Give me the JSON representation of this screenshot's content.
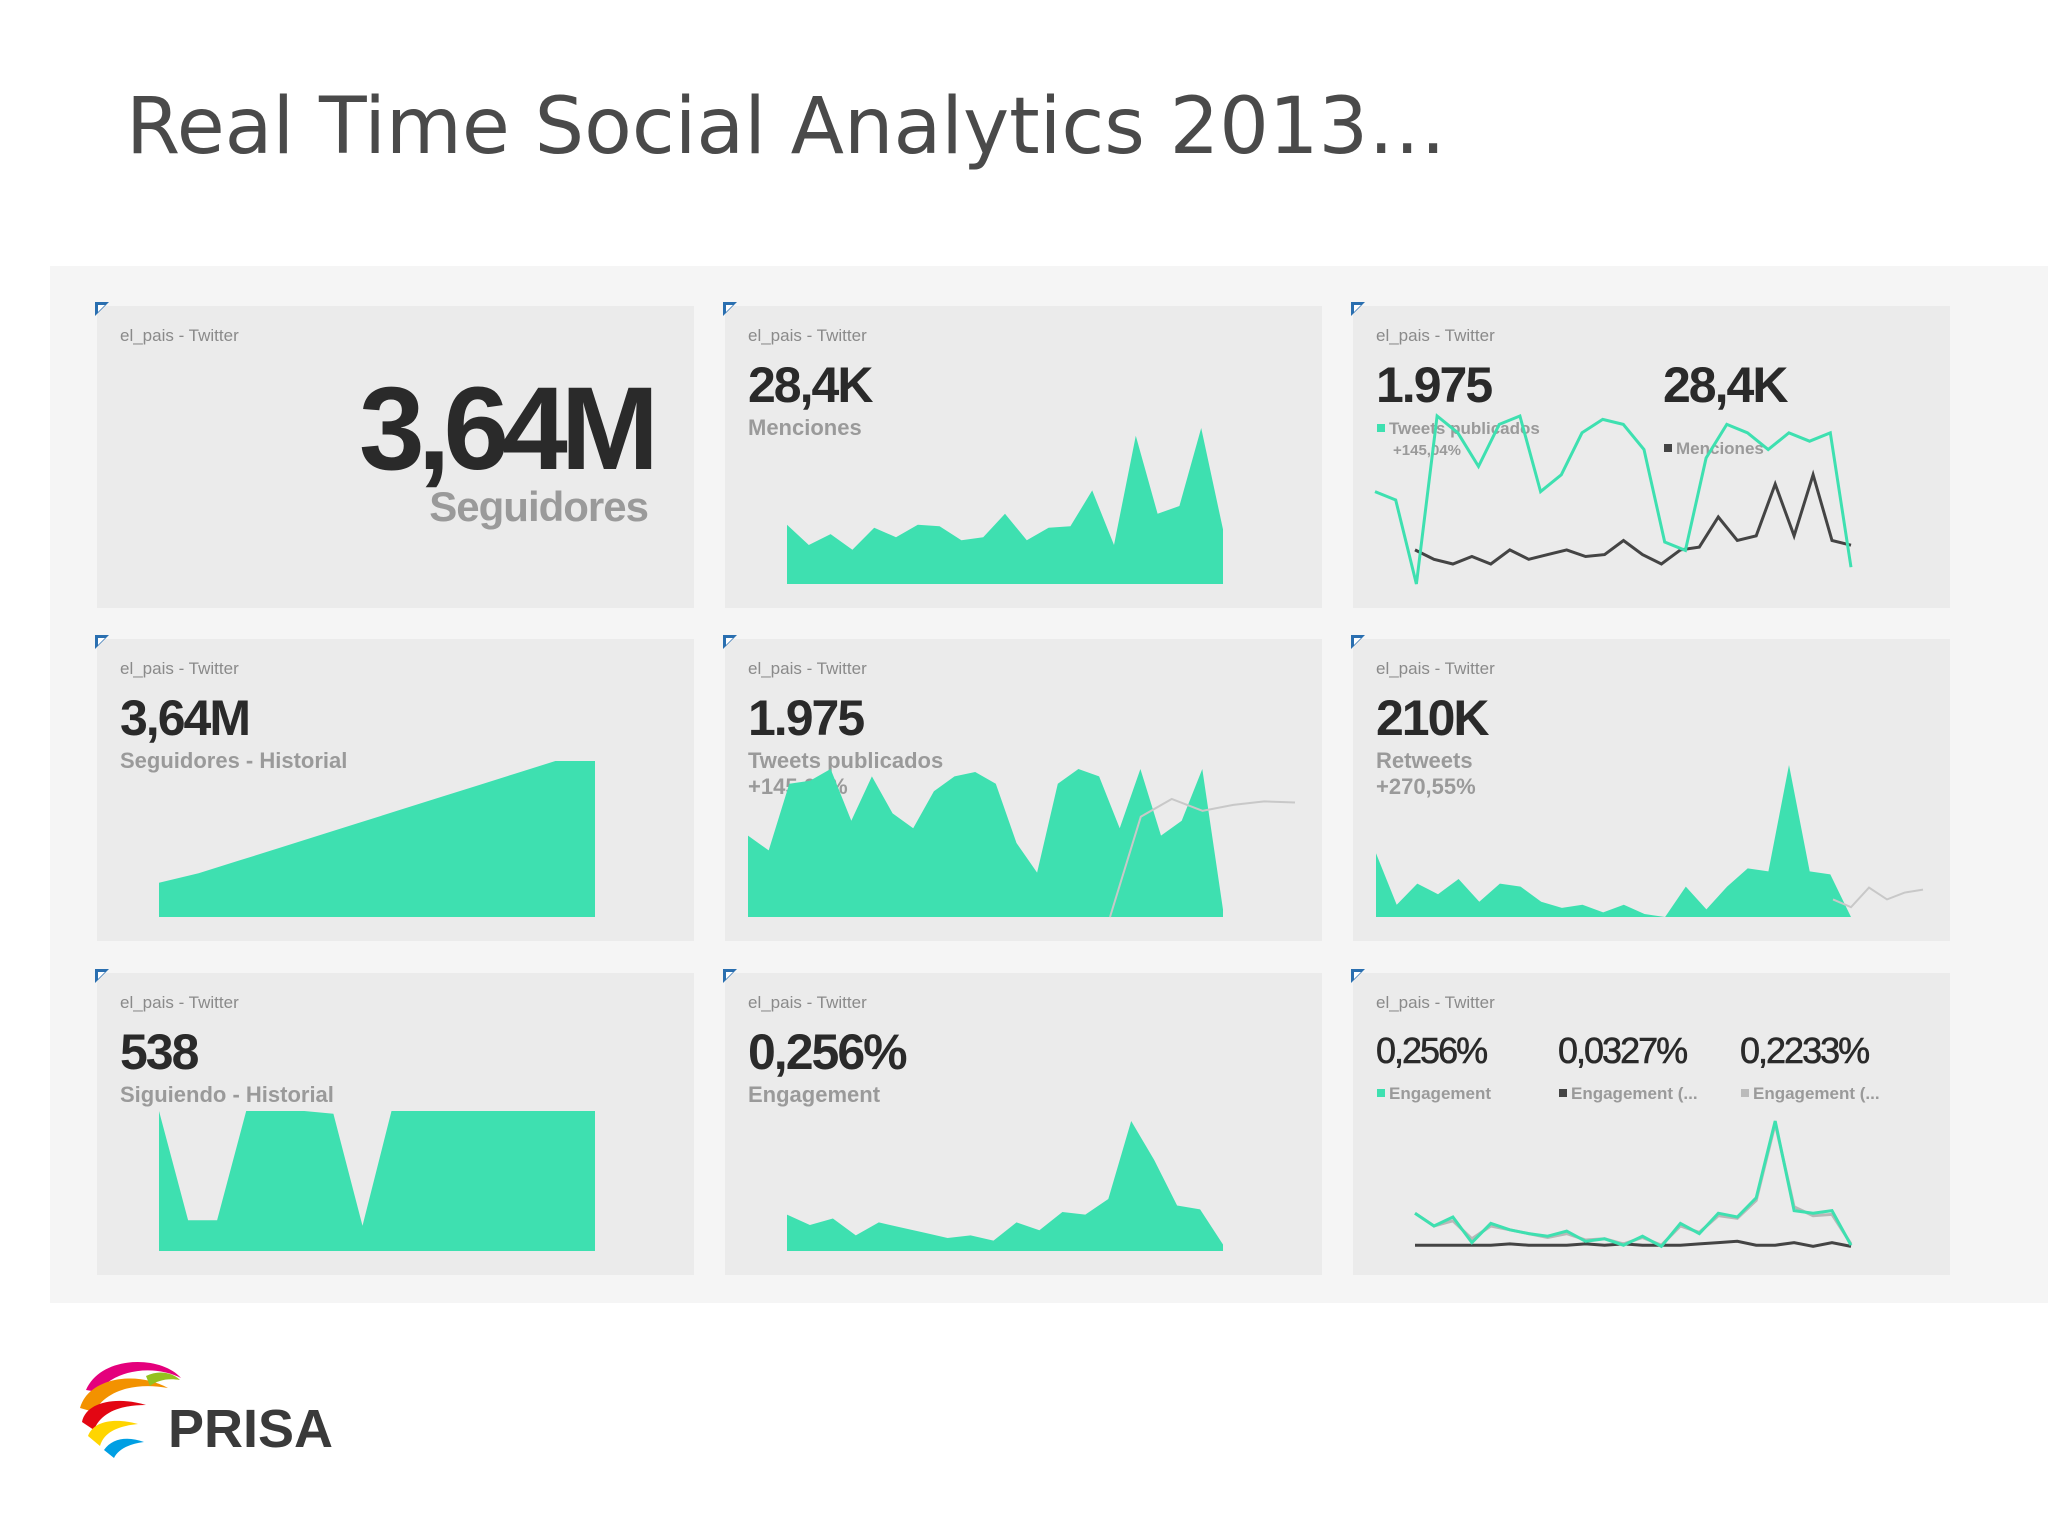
{
  "title": "Real Time Social Analytics 2013…",
  "colors": {
    "accent": "#3ee0b0",
    "dark_series": "#444444",
    "grey_series": "#bbbbbb",
    "tile_bg": "#ebebeb",
    "dashboard_bg": "#f5f5f5"
  },
  "tiles": [
    {
      "source": "el_pais - Twitter",
      "value": "3,64M",
      "label": "Seguidores"
    },
    {
      "source": "el_pais - Twitter",
      "value": "28,4K",
      "label": "Menciones",
      "series": [
        0.38,
        0.25,
        0.32,
        0.22,
        0.36,
        0.3,
        0.38,
        0.37,
        0.28,
        0.3,
        0.45,
        0.28,
        0.36,
        0.37,
        0.6,
        0.25,
        0.95,
        0.45,
        0.5,
        1.0,
        0.35
      ]
    },
    {
      "source": "el_pais - Twitter",
      "values": [
        "1.975",
        "28,4K"
      ],
      "legend": [
        "Tweets publicados",
        "Menciones"
      ],
      "legend_sub": "+145,04%",
      "series_a": [
        0.55,
        0.5,
        0.0,
        1.0,
        0.9,
        0.7,
        0.95,
        1.0,
        0.55,
        0.65,
        0.9,
        0.98,
        0.95,
        0.8,
        0.25,
        0.2,
        0.75,
        0.95,
        0.9,
        0.8,
        0.9,
        0.85,
        0.9,
        0.1
      ],
      "series_b": [
        0.15,
        0.05,
        0.0,
        0.08,
        0.0,
        0.15,
        0.05,
        0.1,
        0.15,
        0.08,
        0.1,
        0.25,
        0.1,
        0.0,
        0.15,
        0.18,
        0.5,
        0.25,
        0.3,
        0.85,
        0.3,
        0.95,
        0.25,
        0.2
      ]
    },
    {
      "source": "el_pais - Twitter",
      "value": "3,64M",
      "label": "Seguidores - Historial",
      "series": [
        0.22,
        0.28,
        0.36,
        0.44,
        0.52,
        0.6,
        0.68,
        0.76,
        0.84,
        0.92,
        1.0,
        1.0
      ]
    },
    {
      "source": "el_pais - Twitter",
      "value": "1.975",
      "label": "Tweets publicados",
      "sub": "+145,04%",
      "series": [
        0.55,
        0.45,
        0.9,
        0.92,
        1.0,
        0.65,
        0.95,
        0.7,
        0.6,
        0.85,
        0.95,
        0.98,
        0.9,
        0.5,
        0.3,
        0.9,
        1.0,
        0.95,
        0.6,
        1.0,
        0.55,
        0.65,
        1.0,
        0.05
      ],
      "ghost": [
        0.0,
        0.85,
        1.0,
        0.9,
        0.95,
        0.98,
        0.97
      ]
    },
    {
      "source": "el_pais - Twitter",
      "value": "210K",
      "label": "Retweets",
      "sub": "+270,55%",
      "series": [
        0.42,
        0.08,
        0.22,
        0.15,
        0.25,
        0.1,
        0.22,
        0.2,
        0.1,
        0.06,
        0.08,
        0.03,
        0.08,
        0.02,
        0.0,
        0.2,
        0.05,
        0.2,
        0.32,
        0.3,
        1.0,
        0.3,
        0.28,
        0.0
      ],
      "ghost": [
        0.18,
        0.1,
        0.3,
        0.18,
        0.25,
        0.28
      ]
    },
    {
      "source": "el_pais - Twitter",
      "value": "538",
      "label": "Siguiendo - Historial",
      "series": [
        1.0,
        0.22,
        0.22,
        1.0,
        1.0,
        1.0,
        0.98,
        0.18,
        1.0,
        1.0,
        1.0,
        1.0,
        1.0,
        1.0,
        1.0,
        1.0
      ]
    },
    {
      "source": "el_pais - Twitter",
      "value": "0,256%",
      "label": "Engagement",
      "series": [
        0.28,
        0.2,
        0.25,
        0.12,
        0.22,
        0.18,
        0.14,
        0.1,
        0.12,
        0.08,
        0.22,
        0.16,
        0.3,
        0.28,
        0.4,
        1.0,
        0.7,
        0.35,
        0.32,
        0.05
      ]
    },
    {
      "source": "el_pais - Twitter",
      "values": [
        "0,256%",
        "0,0327%",
        "0,2233%"
      ],
      "legend": [
        "Engagement",
        "Engagement (...",
        "Engagement (..."
      ],
      "series_a": [
        0.28,
        0.18,
        0.25,
        0.05,
        0.2,
        0.15,
        0.12,
        0.1,
        0.14,
        0.06,
        0.08,
        0.03,
        0.1,
        0.02,
        0.2,
        0.12,
        0.28,
        0.25,
        0.4,
        1.0,
        0.3,
        0.28,
        0.3,
        0.03
      ],
      "series_b": [
        0.28,
        0.18,
        0.22,
        0.08,
        0.18,
        0.15,
        0.12,
        0.09,
        0.12,
        0.07,
        0.08,
        0.04,
        0.09,
        0.03,
        0.18,
        0.13,
        0.26,
        0.24,
        0.38,
        0.98,
        0.33,
        0.26,
        0.27,
        0.04
      ],
      "series_c": [
        0.03,
        0.03,
        0.03,
        0.03,
        0.03,
        0.04,
        0.03,
        0.03,
        0.03,
        0.04,
        0.03,
        0.04,
        0.03,
        0.03,
        0.03,
        0.04,
        0.05,
        0.06,
        0.03,
        0.03,
        0.05,
        0.02,
        0.05,
        0.02
      ]
    }
  ],
  "logo": {
    "text": "PRISA"
  }
}
